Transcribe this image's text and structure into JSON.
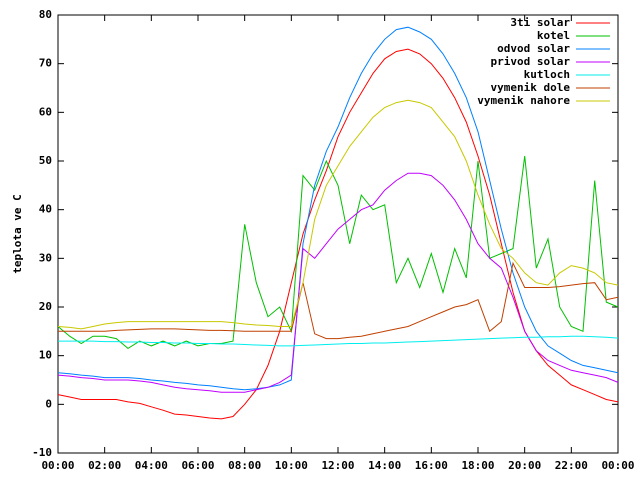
{
  "chart_data": {
    "type": "line",
    "y_label": "teplota ve C",
    "x": [
      0,
      0.5,
      1,
      1.5,
      2,
      2.5,
      3,
      3.5,
      4,
      4.5,
      5,
      5.5,
      6,
      6.5,
      7,
      7.5,
      8,
      8.5,
      9,
      9.5,
      10,
      10.5,
      11,
      11.5,
      12,
      12.5,
      13,
      13.5,
      14,
      14.5,
      15,
      15.5,
      16,
      16.5,
      17,
      17.5,
      18,
      18.5,
      19,
      19.5,
      20,
      20.5,
      21,
      21.5,
      22,
      22.5,
      23,
      23.5,
      24
    ],
    "xlim": [
      0,
      24
    ],
    "xticks": [
      {
        "value": 0,
        "label": "00:00"
      },
      {
        "value": 2,
        "label": "02:00"
      },
      {
        "value": 4,
        "label": "04:00"
      },
      {
        "value": 6,
        "label": "06:00"
      },
      {
        "value": 8,
        "label": "08:00"
      },
      {
        "value": 10,
        "label": "10:00"
      },
      {
        "value": 12,
        "label": "12:00"
      },
      {
        "value": 14,
        "label": "14:00"
      },
      {
        "value": 16,
        "label": "16:00"
      },
      {
        "value": 18,
        "label": "18:00"
      },
      {
        "value": 20,
        "label": "20:00"
      },
      {
        "value": 22,
        "label": "22:00"
      },
      {
        "value": 24,
        "label": "00:00"
      }
    ],
    "ylim": [
      -10,
      80
    ],
    "yticks": [
      -10,
      0,
      10,
      20,
      30,
      40,
      50,
      60,
      70,
      80
    ],
    "legend": "top-right",
    "series": [
      {
        "name": "3ti solar",
        "color": "#ff0000",
        "values": [
          2,
          1.5,
          1,
          1,
          1,
          1,
          0.5,
          0.2,
          -0.5,
          -1.2,
          -2,
          -2.2,
          -2.5,
          -2.8,
          -3,
          -2.5,
          0,
          3,
          8,
          15,
          25,
          35,
          42,
          48,
          55,
          60,
          64,
          68,
          71,
          72.5,
          73,
          72,
          70,
          67,
          63,
          58,
          51,
          43,
          33,
          23,
          15,
          11,
          8,
          6,
          4,
          3,
          2,
          1,
          0.5
        ]
      },
      {
        "name": "kotel",
        "color": "#00c000",
        "values": [
          16,
          14,
          12.5,
          14,
          14,
          13.5,
          11.5,
          13,
          12,
          13,
          12,
          13,
          12,
          12.5,
          12.5,
          13,
          37,
          25,
          18,
          20,
          15,
          47,
          44,
          50,
          45,
          33,
          43,
          40,
          41,
          25,
          30,
          24,
          31,
          23,
          32,
          26,
          50,
          30,
          31,
          32,
          51,
          28,
          34,
          20,
          16,
          15,
          46,
          21,
          20
        ]
      },
      {
        "name": "odvod solar",
        "color": "#0080ff",
        "values": [
          6.5,
          6.3,
          6,
          5.8,
          5.5,
          5.5,
          5.5,
          5.3,
          5,
          4.8,
          4.5,
          4.3,
          4,
          3.8,
          3.5,
          3.2,
          3,
          3.2,
          3.5,
          4,
          5,
          33,
          45,
          52,
          57,
          63,
          68,
          72,
          75,
          77,
          77.5,
          76.5,
          75,
          72,
          68,
          63,
          56,
          46,
          36,
          27,
          20,
          15,
          12,
          10.5,
          9,
          8,
          7.5,
          7,
          6.5
        ]
      },
      {
        "name": "privod solar",
        "color": "#c000ff",
        "values": [
          6,
          5.8,
          5.5,
          5.3,
          5,
          5,
          5,
          4.8,
          4.5,
          4,
          3.5,
          3.2,
          3,
          2.8,
          2.5,
          2.5,
          2.5,
          3,
          3.5,
          4.5,
          6,
          32,
          30,
          33,
          36,
          38,
          40,
          41,
          44,
          46,
          47.5,
          47.5,
          47,
          45,
          42,
          38,
          33,
          30,
          28,
          22,
          15,
          11,
          9,
          8,
          7,
          6.5,
          6,
          5.5,
          4.5
        ]
      },
      {
        "name": "kutloch",
        "color": "#00eeee",
        "values": [
          13,
          13,
          13,
          13,
          12.9,
          12.9,
          12.8,
          12.8,
          12.7,
          12.7,
          12.6,
          12.6,
          12.5,
          12.5,
          12.4,
          12.4,
          12.3,
          12.2,
          12.1,
          12,
          12,
          12.1,
          12.2,
          12.3,
          12.4,
          12.5,
          12.5,
          12.6,
          12.6,
          12.7,
          12.8,
          12.9,
          13,
          13.1,
          13.2,
          13.3,
          13.4,
          13.5,
          13.6,
          13.7,
          13.8,
          13.8,
          13.9,
          13.9,
          14,
          14,
          13.9,
          13.8,
          13.6
        ]
      },
      {
        "name": "vymenik dole",
        "color": "#c04000",
        "values": [
          15,
          15,
          15,
          15,
          15,
          15.2,
          15.3,
          15.4,
          15.5,
          15.5,
          15.5,
          15.4,
          15.3,
          15.2,
          15.2,
          15.1,
          15,
          15,
          15,
          15,
          15,
          25,
          14.5,
          13.5,
          13.5,
          13.8,
          14,
          14.5,
          15,
          15.5,
          16,
          17,
          18,
          19,
          20,
          20.5,
          21.5,
          15,
          17,
          29,
          24,
          24,
          24,
          24.2,
          24.5,
          24.8,
          25,
          21.5,
          22
        ]
      },
      {
        "name": "vymenik nahore",
        "color": "#c8c800",
        "values": [
          16,
          15.8,
          15.5,
          16,
          16.5,
          16.8,
          17,
          17,
          17,
          17,
          17,
          17,
          17,
          17,
          17,
          16.8,
          16.5,
          16.3,
          16.2,
          16,
          16,
          25,
          38,
          45,
          49,
          53,
          56,
          59,
          61,
          62,
          62.5,
          62,
          61,
          58,
          55,
          50,
          43,
          37,
          32,
          30,
          27,
          25,
          24.5,
          27,
          28.5,
          28,
          27,
          25,
          24.5
        ]
      }
    ]
  }
}
